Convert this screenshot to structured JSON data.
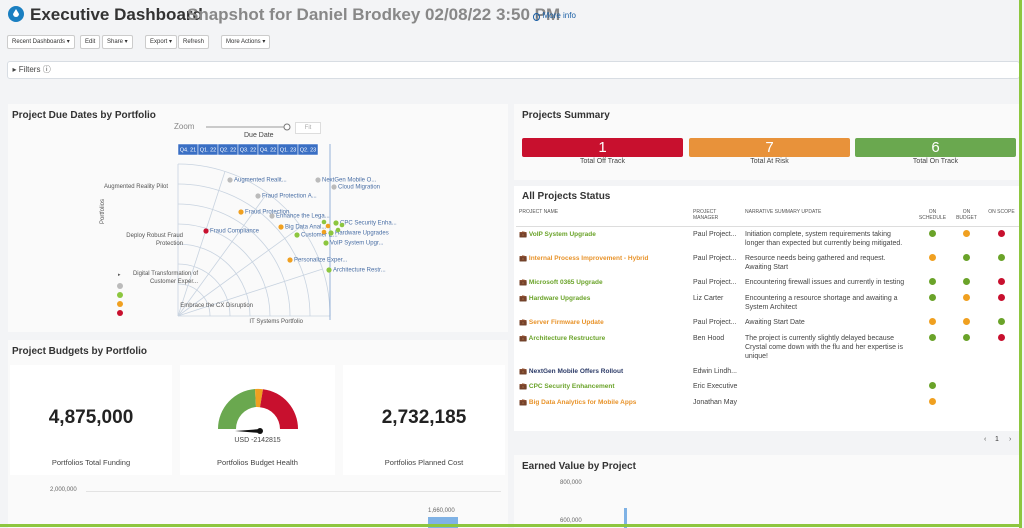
{
  "header": {
    "title": "Executive Dashboard",
    "subtitle": "Snapshot for Daniel Brodkey 02/08/22 3:50 PM",
    "more_info": "More info"
  },
  "toolbar": [
    "Recent Dashboards",
    "Edit",
    "Share",
    "Export",
    "Refresh",
    "More Actions"
  ],
  "filters": "Filters",
  "due_dates": {
    "title": "Project Due Dates by Portfolio",
    "zoom": "Zoom",
    "fit": "Fit",
    "axis_title": "Due Date",
    "y_axis_title": "Portfolios",
    "quarters": [
      "Q4. 21",
      "Q1. 22",
      "Q2. 22",
      "Q3. 22",
      "Q4. 22",
      "Q1. 23",
      "Q2. 23"
    ],
    "portfolios": [
      "Augmented Reality Pilot",
      "Deploy Robust Fraud Protection",
      "Digital Transformation of Customer Exper...",
      "Embrace the CX Disruption",
      "IT Systems Portfolio"
    ],
    "projects": [
      {
        "label": "Augmented Realit...",
        "color": "#bbbbbb"
      },
      {
        "label": "NextGen Mobile O...",
        "color": "#bbbbbb"
      },
      {
        "label": "Cloud Migration",
        "color": "#bbbbbb"
      },
      {
        "label": "Fraud Protection A...",
        "color": "#bbbbbb"
      },
      {
        "label": "Fraud Protection",
        "color": "#f0a020"
      },
      {
        "label": "Enhance the Lega...",
        "color": "#bbbbbb"
      },
      {
        "label": "CPC Security Enha...",
        "color": "#8cc63f"
      },
      {
        "label": "Fraud Compliance",
        "color": "#c8102e"
      },
      {
        "label": "Big Data Anal...",
        "color": "#f0a020"
      },
      {
        "label": "Customer E...",
        "color": "#8cc63f"
      },
      {
        "label": "Hardware Upgrades",
        "color": "#8cc63f"
      },
      {
        "label": "VoIP System Upgr...",
        "color": "#8cc63f"
      },
      {
        "label": "Personalize Exper...",
        "color": "#f0a020"
      },
      {
        "label": "Architecture Restr...",
        "color": "#8cc63f"
      }
    ]
  },
  "summary": {
    "title": "Projects Summary",
    "cards": [
      {
        "value": 1,
        "label": "Total Off Track",
        "color": "#c8102e"
      },
      {
        "value": 7,
        "label": "Total At Risk",
        "color": "#e8923a"
      },
      {
        "value": 6,
        "label": "Total On Track",
        "color": "#6aa84f"
      }
    ]
  },
  "status": {
    "title": "All Projects Status",
    "columns": [
      "PROJECT NAME",
      "PROJECT MANAGER",
      "NARRATIVE SUMMARY UPDATE",
      "ON SCHEDULE",
      "ON BUDGET",
      "ON SCOPE"
    ],
    "rows": [
      {
        "name": "VoIP System Upgrade",
        "name_color": "#6aa329",
        "manager": "Paul Project...",
        "narrative": "Initiation complete, system requirements taking longer than expected but currently being mitigated.",
        "dots": [
          "#6aa329",
          "#f0a020",
          "#c8102e"
        ]
      },
      {
        "name": "Internal Process Improvement - Hybrid",
        "name_color": "#e8932a",
        "manager": "Paul Project...",
        "narrative": "Resource needs being gathered and request. Awaiting Start",
        "dots": [
          "#f0a020",
          "#6aa329",
          "#6aa329"
        ]
      },
      {
        "name": "Microsoft 0365 Upgrade",
        "name_color": "#6aa329",
        "manager": "Paul Project...",
        "narrative": "Encountering firewall issues and currently in testing",
        "dots": [
          "#6aa329",
          "#6aa329",
          "#c8102e"
        ]
      },
      {
        "name": "Hardware Upgrades",
        "name_color": "#6aa329",
        "manager": "Liz Carter",
        "narrative": "Encountering a resource shortage and awaiting a System Architect",
        "dots": [
          "#6aa329",
          "#f0a020",
          "#c8102e"
        ]
      },
      {
        "name": "Server Firmware Update",
        "name_color": "#e8932a",
        "manager": "Paul Project...",
        "narrative": "Awaiting Start Date",
        "dots": [
          "#f0a020",
          "#f0a020",
          "#6aa329"
        ]
      },
      {
        "name": "Architecture Restructure",
        "name_color": "#6aa329",
        "manager": "Ben Hood",
        "narrative": "The project is currently slightly delayed because Crystal come down with the flu and her expertise is unique!",
        "dots": [
          "#6aa329",
          "#6aa329",
          "#c8102e"
        ]
      },
      {
        "name": "NextGen Mobile Offers Rollout",
        "name_color": "#2b3a67",
        "manager": "Edwin Lindh...",
        "narrative": null,
        "dots": [
          null,
          null,
          null
        ]
      },
      {
        "name": "CPC Security Enhancement",
        "name_color": "#6aa329",
        "manager": "Eric Executive",
        "narrative": null,
        "dots": [
          "#6aa329",
          null,
          null
        ]
      },
      {
        "name": "Big Data Analytics for Mobile Apps",
        "name_color": "#e8932a",
        "manager": "Jonathan May",
        "narrative": null,
        "dots": [
          "#f0a020",
          null,
          null
        ]
      }
    ],
    "page": "1"
  },
  "budgets": {
    "title": "Project Budgets by Portfolio",
    "kpis": [
      {
        "value": "4,875,000",
        "label": "Portfolios Total Funding"
      },
      {
        "value": "USD -2142815",
        "label": "Portfolios Budget Health"
      },
      {
        "value": "2,732,185",
        "label": "Portfolios Planned Cost"
      }
    ],
    "axis_label": "2,000,000",
    "bar_label": "1,660,000"
  },
  "earned_value": {
    "title": "Earned Value by Project",
    "axis_labels": [
      "800,000",
      "600,000"
    ]
  }
}
